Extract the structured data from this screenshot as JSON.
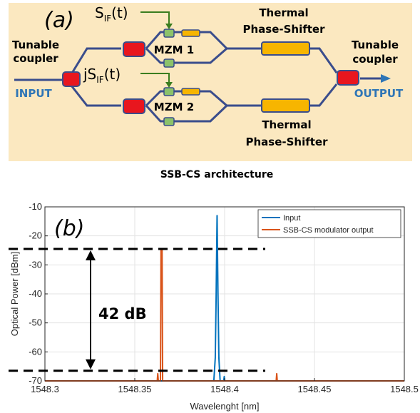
{
  "diagram": {
    "panel_label": "(a)",
    "signal_top": {
      "base": "S",
      "sub": "IF",
      "arg": "(t)"
    },
    "signal_bottom": {
      "base": "jS",
      "sub": "IF",
      "arg": "(t)"
    },
    "tunable_coupler_left": [
      "Tunable",
      "coupler"
    ],
    "tunable_coupler_right": [
      "Tunable",
      "coupler"
    ],
    "input_label": "INPUT",
    "output_label": "OUTPUT",
    "mzm1_label": "MZM 1",
    "mzm2_label": "MZM 2",
    "phase_shifter_top": [
      "Thermal",
      "Phase-Shifter"
    ],
    "phase_shifter_bottom": [
      "Thermal",
      "Phase-Shifter"
    ],
    "caption": "SSB-CS architecture",
    "colors": {
      "background": "#fbe8c0",
      "waveguide": "#3a4d8c",
      "coupler": "#e8161e",
      "heater": "#f7b500",
      "electrode": "#8cc26a",
      "signal_line": "#3a7d1f",
      "io_arrow": "#2e75b6"
    }
  },
  "chart_data": {
    "type": "line",
    "panel_label": "(b)",
    "xlabel": "Wavelenght [nm]",
    "ylabel": "Optical Power [dBm]",
    "xlim": [
      1548.3,
      1548.5
    ],
    "ylim": [
      -70,
      -10
    ],
    "xticks": [
      1548.3,
      1548.35,
      1548.4,
      1548.45,
      1548.5
    ],
    "xtick_labels": [
      "1548.3",
      "1548.35",
      "1548.4",
      "1548.45",
      "1548.5"
    ],
    "yticks": [
      -10,
      -20,
      -30,
      -40,
      -50,
      -60,
      -70
    ],
    "ytick_labels": [
      "-10",
      "-20",
      "-30",
      "-40",
      "-50",
      "-60",
      "-70"
    ],
    "grid": true,
    "legend_position": "top-right",
    "series": [
      {
        "name": "Input",
        "color": "#0072bd",
        "points": [
          [
            1548.3,
            -70
          ],
          [
            1548.394,
            -70
          ],
          [
            1548.3948,
            -62
          ],
          [
            1548.3953,
            -40
          ],
          [
            1548.3958,
            -13
          ],
          [
            1548.3963,
            -40
          ],
          [
            1548.3968,
            -62
          ],
          [
            1548.3975,
            -70
          ],
          [
            1548.3995,
            -70
          ],
          [
            1548.3998,
            -68.5
          ],
          [
            1548.4001,
            -70
          ],
          [
            1548.5,
            -70
          ]
        ]
      },
      {
        "name": "SSB-CS modulator output",
        "color": "#d95319",
        "points": [
          [
            1548.3,
            -70
          ],
          [
            1548.3625,
            -70
          ],
          [
            1548.3628,
            -67.5
          ],
          [
            1548.3631,
            -70
          ],
          [
            1548.3643,
            -70
          ],
          [
            1548.3646,
            -24.5
          ],
          [
            1548.3652,
            -24.5
          ],
          [
            1548.3655,
            -70
          ],
          [
            1548.4287,
            -70
          ],
          [
            1548.429,
            -67.5
          ],
          [
            1548.4293,
            -70
          ],
          [
            1548.5,
            -70
          ]
        ]
      }
    ],
    "annotation": {
      "text": "42 dB",
      "upper_level": -24.5,
      "lower_level": -66.5
    }
  }
}
